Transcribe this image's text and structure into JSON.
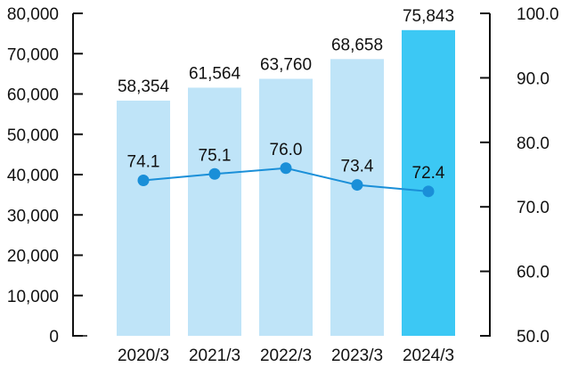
{
  "chart_data": {
    "type": "bar",
    "categories": [
      "2020/3",
      "2021/3",
      "2022/3",
      "2023/3",
      "2024/3"
    ],
    "series": [
      {
        "type": "bar",
        "axis": "left",
        "values": [
          58354,
          61564,
          63760,
          68658,
          75843
        ],
        "labels": [
          "58,354",
          "61,564",
          "63,760",
          "68,658",
          "75,843"
        ],
        "color": "#bfe4f8",
        "highlight_color": "#3cc8f4"
      },
      {
        "type": "line",
        "axis": "right",
        "values": [
          74.1,
          75.1,
          76.0,
          73.4,
          72.4
        ],
        "labels": [
          "74.1",
          "75.1",
          "76.0",
          "73.4",
          "72.4"
        ],
        "color": "#1a8fd8"
      }
    ],
    "left_axis": {
      "ylim": [
        0,
        80000
      ],
      "ticks": [
        "0",
        "10,000",
        "20,000",
        "30,000",
        "40,000",
        "50,000",
        "60,000",
        "70,000",
        "80,000"
      ]
    },
    "right_axis": {
      "ylim": [
        50.0,
        100.0
      ],
      "ticks": [
        "50.0",
        "60.0",
        "70.0",
        "80.0",
        "90.0",
        "100.0"
      ]
    },
    "title": "",
    "xlabel": "",
    "ylabel": "",
    "grid": false,
    "legend": "none"
  }
}
